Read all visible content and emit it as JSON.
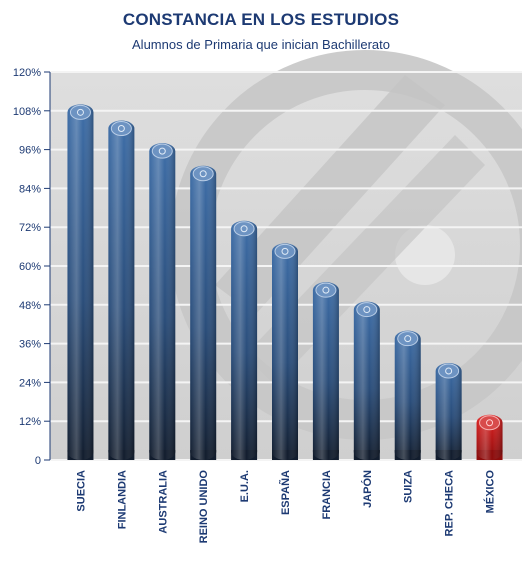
{
  "chart_data": {
    "type": "bar",
    "title": "CONSTANCIA EN LOS ESTUDIOS",
    "subtitle": "Alumnos de Primaria que inician Bachillerato",
    "xlabel": "",
    "ylabel": "",
    "ylim": [
      0,
      120
    ],
    "yticks": [
      0,
      12,
      24,
      36,
      48,
      60,
      72,
      84,
      96,
      108,
      120
    ],
    "ytick_labels": [
      "0",
      "12%",
      "24%",
      "36%",
      "48%",
      "60%",
      "72%",
      "84%",
      "96%",
      "108%",
      "120%"
    ],
    "grid": true,
    "categories": [
      "SUECIA",
      "FINLANDIA",
      "AUSTRALIA",
      "REINO UNIDO",
      "E.U.A.",
      "ESPAÑA",
      "FRANCIA",
      "JAPÓN",
      "SUIZA",
      "REP. CHECA",
      "MÉXICO"
    ],
    "values": [
      110,
      105,
      98,
      91,
      74,
      67,
      55,
      49,
      40,
      30,
      14
    ],
    "highlight": "MÉXICO",
    "colors": {
      "bar": "#3b6aa3",
      "bar_dark": "#142236",
      "highlight": "#c81818",
      "background": "#d9d9d9",
      "title": "#1d3a73"
    }
  }
}
